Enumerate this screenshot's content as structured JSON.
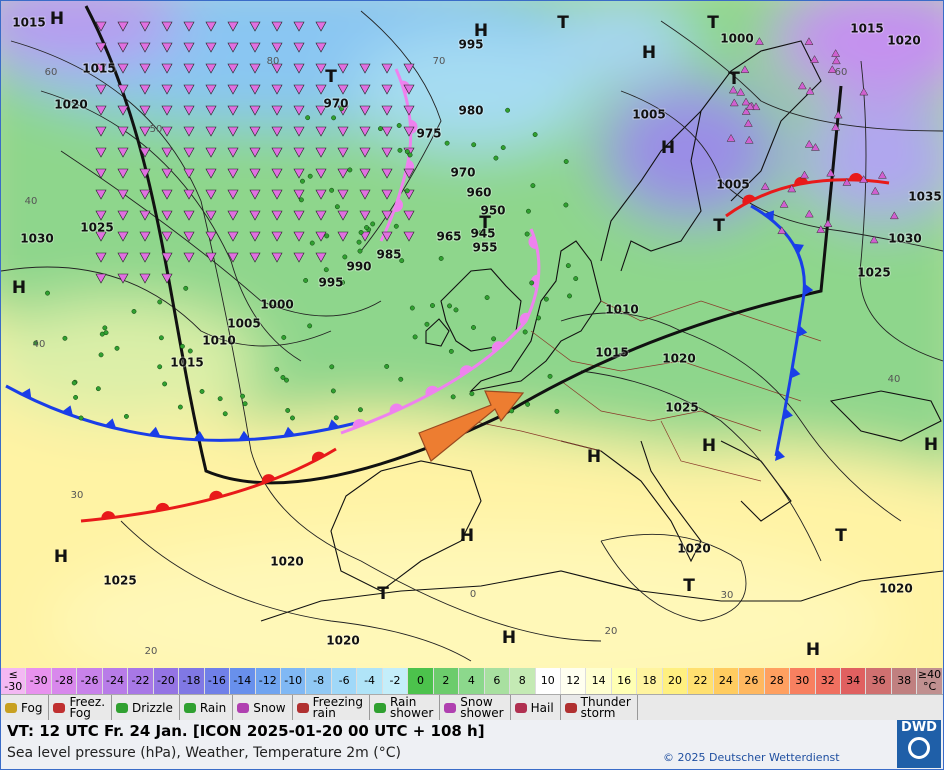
{
  "map": {
    "pressure_labels": [
      "1015",
      "1015",
      "1020",
      "995",
      "970",
      "980",
      "975",
      "970",
      "960",
      "950",
      "945",
      "955",
      "965",
      "985",
      "990",
      "995",
      "1000",
      "1005",
      "1010",
      "1015",
      "1025",
      "1030",
      "1000",
      "1005",
      "1005",
      "1010",
      "1015",
      "1020",
      "1025",
      "1025",
      "1030",
      "1035",
      "1015",
      "1020",
      "1020",
      "1025",
      "1020",
      "1020",
      "1020"
    ],
    "centers": [
      "H",
      "H",
      "T",
      "T",
      "H",
      "T",
      "T",
      "H",
      "T",
      "T",
      "H",
      "H",
      "H",
      "H",
      "H",
      "T",
      "H",
      "T",
      "T",
      "H",
      "H"
    ],
    "grid_labels": [
      "60",
      "50",
      "40",
      "40",
      "30",
      "20",
      "70",
      "80",
      "60",
      "40",
      "30",
      "20",
      "0"
    ]
  },
  "temperature_scale": {
    "labels": [
      "≤\n-30",
      "-30",
      "-28",
      "-26",
      "-24",
      "-22",
      "-20",
      "-18",
      "-16",
      "-14",
      "-12",
      "-10",
      "-8",
      "-6",
      "-4",
      "-2",
      "0",
      "2",
      "4",
      "6",
      "8",
      "10",
      "12",
      "14",
      "16",
      "18",
      "20",
      "22",
      "24",
      "26",
      "28",
      "30",
      "32",
      "34",
      "36",
      "38",
      "≥40\n°C"
    ],
    "colors": [
      "#f3b8f3",
      "#e892ee",
      "#d888ec",
      "#c882ea",
      "#b87ce8",
      "#a878e6",
      "#9474e4",
      "#8078e4",
      "#7080e8",
      "#6890ec",
      "#70a4f0",
      "#80b8f4",
      "#90c8f4",
      "#a0d8f8",
      "#b0e4f8",
      "#c4eefa",
      "#4cc24c",
      "#6ccc6c",
      "#8cd88c",
      "#a8e0a0",
      "#c4eab4",
      "#ffffff",
      "#fffff0",
      "#ffffd0",
      "#ffffb4",
      "#fff4a0",
      "#fff080",
      "#ffe070",
      "#ffcc60",
      "#ffb860",
      "#ffa060",
      "#f88060",
      "#f07060",
      "#e06060",
      "#d07070",
      "#c08080",
      "#c09090"
    ]
  },
  "weather_legend": [
    "Fog",
    "Freez.\nFog",
    "Drizzle",
    "Rain",
    "Snow",
    "Freezing\nrain",
    "Rain\nshower",
    "Snow\nshower",
    "Hail",
    "Thunder\nstorm"
  ],
  "footer": {
    "valid_time": "VT: 12 UTC Fr.  24 Jan. [ICON 2025-01-20  00 UTC + 108 h]",
    "subtitle": "Sea level pressure (hPa), Weather, Temperature 2m (°C)",
    "copyright": "© 2025 Deutscher Wetterdienst",
    "logo": "DWD"
  }
}
